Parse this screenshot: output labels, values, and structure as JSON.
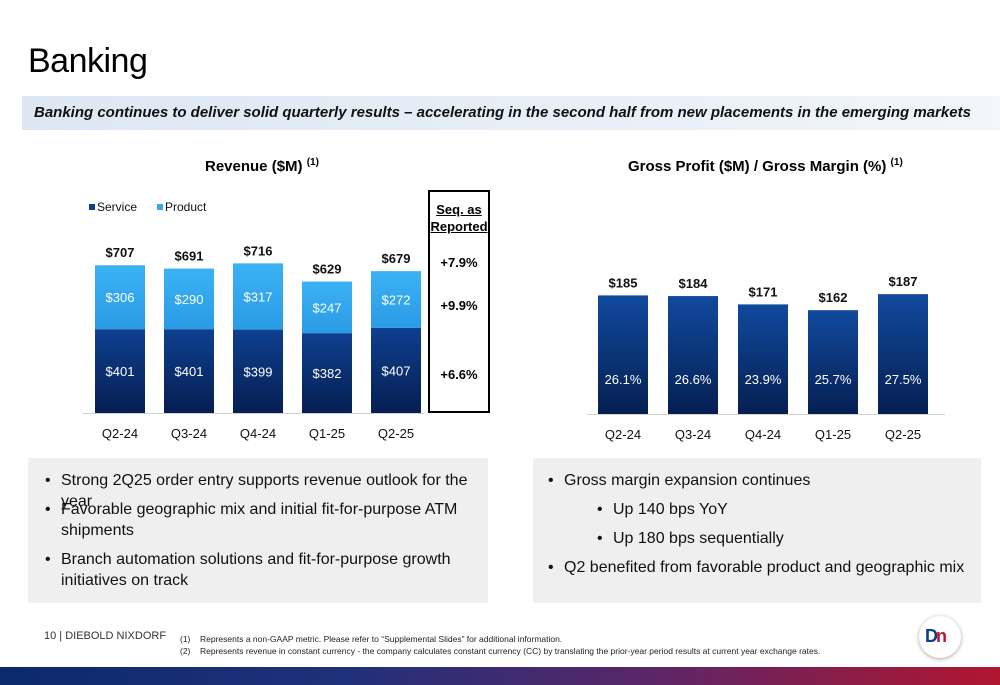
{
  "page": {
    "title": "Banking",
    "subtitle": "Banking continues to deliver solid quarterly results – accelerating in the second half from new placements in the emerging markets"
  },
  "revenue_chart": {
    "title": "Revenue ($M)",
    "title_note": "(1)"
  },
  "gp_chart": {
    "title": "Gross Profit ($M) / Gross Margin (%)",
    "title_note": "(1)"
  },
  "seq_box": {
    "header": "Seq. as Reported",
    "values": [
      "+7.9%",
      "+9.9%",
      "+6.6%"
    ]
  },
  "colors": {
    "service_bar": "#0e3f8f",
    "product_bar": "#33aaf0",
    "gp_bar": "#104a9e"
  },
  "chart_data": [
    {
      "type": "bar",
      "stacked": true,
      "categories": [
        "Q2-24",
        "Q3-24",
        "Q4-24",
        "Q1-25",
        "Q2-25"
      ],
      "series": [
        {
          "name": "Service",
          "values": [
            401,
            401,
            399,
            382,
            407
          ],
          "labels": [
            "$401",
            "$401",
            "$399",
            "$382",
            "$407"
          ]
        },
        {
          "name": "Product",
          "values": [
            306,
            290,
            317,
            247,
            272
          ],
          "labels": [
            "$306",
            "$290",
            "$317",
            "$247",
            "$272"
          ]
        }
      ],
      "totals": [
        "$707",
        "$691",
        "$716",
        "$629",
        "$679"
      ],
      "legend": "top-left",
      "grid": false
    },
    {
      "type": "bar",
      "categories": [
        "Q2-24",
        "Q3-24",
        "Q4-24",
        "Q1-25",
        "Q2-25"
      ],
      "series": [
        {
          "values": [
            185,
            184,
            171,
            162,
            187
          ],
          "labels": [
            "$185",
            "$184",
            "$171",
            "$162",
            "$187"
          ]
        }
      ],
      "margin_labels": [
        "26.1%",
        "26.6%",
        "23.9%",
        "25.7%",
        "27.5%"
      ],
      "grid": false
    }
  ],
  "left_panel": {
    "bullets": [
      "Strong 2Q25 order entry supports revenue outlook for the year",
      "Favorable geographic mix and initial fit-for-purpose ATM shipments",
      "Branch automation solutions and fit-for-purpose growth initiatives on track"
    ]
  },
  "right_panel": {
    "bullets": [
      "Gross margin expansion continues",
      "Up 140 bps YoY",
      "Up 180 bps sequentially",
      "Q2 benefited from favorable product and geographic mix"
    ]
  },
  "footer": {
    "page_label": "10  |  DIEBOLD NIXDORF",
    "notes": [
      {
        "num": "(1)",
        "text": "Represents a non-GAAP metric.  Please refer to “Supplemental Slides” for additional information."
      },
      {
        "num": "(2)",
        "text": "Represents revenue in constant currency - the company calculates constant currency (CC) by translating the prior-year period results at current year exchange rates."
      }
    ],
    "logo_text": "DN"
  }
}
